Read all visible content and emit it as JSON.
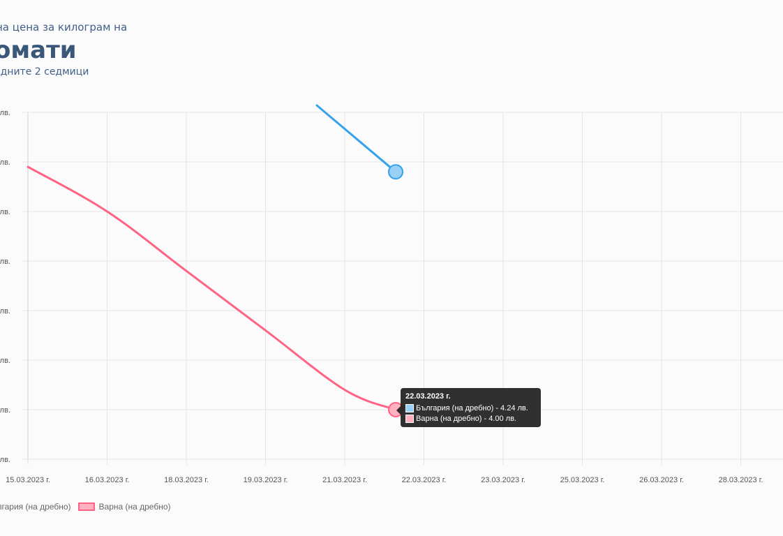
{
  "header": {
    "subtitle_top": "на цена за килограм на",
    "title": "омати",
    "subtitle_bottom": "едните 2 седмици"
  },
  "colors": {
    "bulgaria": "#36a2eb",
    "bulgaria_fill": "#9ad0f5",
    "varna": "#ff6384",
    "varna_fill": "#ffb1c1",
    "grid": "#e5e5e5"
  },
  "legend": [
    {
      "label": "ългария (на дребно)",
      "color_key": "bulgaria"
    },
    {
      "label": "Варна (на дребно)",
      "color_key": "varna"
    }
  ],
  "tooltip": {
    "title": "22.03.2023 г.",
    "rows": [
      {
        "text": "България (на дребно) - 4.24 лв.",
        "color_key": "bulgaria"
      },
      {
        "text": "Варна (на дребно) - 4.00 лв.",
        "color_key": "varna"
      }
    ]
  },
  "chart_data": {
    "type": "line",
    "x_tick_labels": [
      "15.03.2023 г.",
      "16.03.2023 г.",
      "18.03.2023 г.",
      "19.03.2023 г.",
      "21.03.2023 г.",
      "22.03.2023 г.",
      "23.03.2023 г.",
      "25.03.2023 г.",
      "26.03.2023 г.",
      "28.03.2023 г."
    ],
    "y_tick_labels": [
      "лв.",
      "лв.",
      "лв.",
      "лв.",
      "лв.",
      "лв.",
      "лв.",
      "лв."
    ],
    "ylim": [
      3.95,
      4.3
    ],
    "grid": true,
    "legend_position": "bottom-left",
    "series": [
      {
        "name": "България (на дребно)",
        "x": [
          "20.03.2023 г.",
          "22.03.2023 г."
        ],
        "y": [
          4.31,
          4.24
        ],
        "highlight_point": "22.03.2023 г."
      },
      {
        "name": "Варна (на дребно)",
        "x": [
          "15.03.2023 г.",
          "16.03.2023 г.",
          "18.03.2023 г.",
          "19.03.2023 г.",
          "21.03.2023 г.",
          "22.03.2023 г."
        ],
        "y": [
          4.245,
          4.2,
          4.14,
          4.08,
          4.02,
          4.0
        ],
        "highlight_point": "22.03.2023 г."
      }
    ]
  }
}
